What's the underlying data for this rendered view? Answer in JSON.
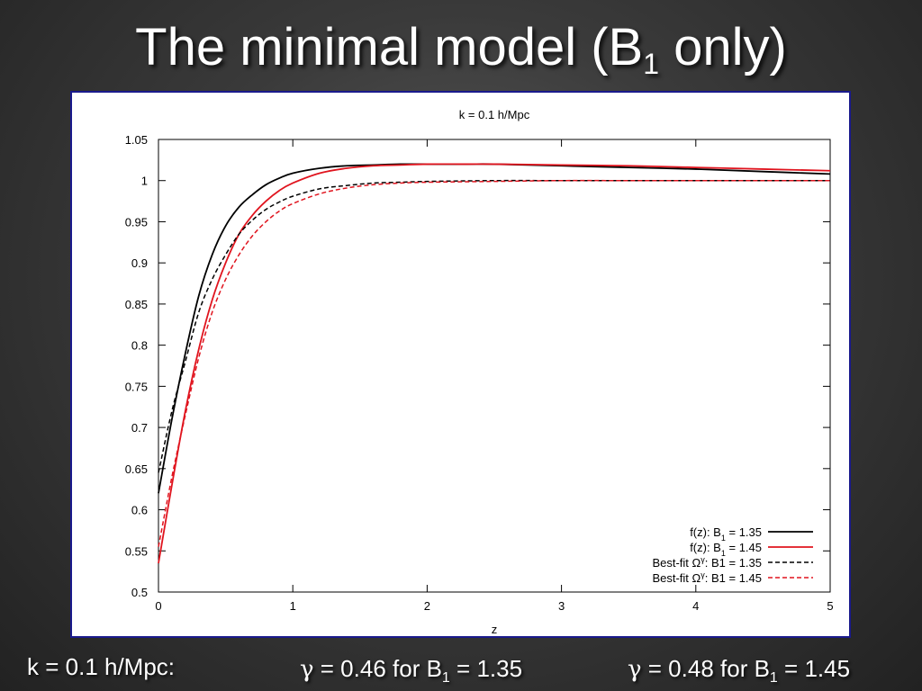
{
  "slide": {
    "title_main": "The minimal model (B",
    "title_sub": "1",
    "title_end": " only)"
  },
  "footer": {
    "left": "k = 0.1 h/Mpc:",
    "mid_greek": "γ",
    "mid_text": " = 0.46 for B",
    "mid_sub": "1",
    "mid_end": " = 1.35",
    "right_greek": "γ",
    "right_text": " = 0.48 for B",
    "right_sub": "1",
    "right_end": " = 1.45"
  },
  "chart_data": {
    "type": "line",
    "title": "k = 0.1 h/Mpc",
    "xlabel": "z",
    "ylabel": "",
    "xlim": [
      0,
      5
    ],
    "ylim": [
      0.5,
      1.05
    ],
    "xticks": [
      "0",
      "1",
      "2",
      "3",
      "4",
      "5"
    ],
    "yticks": [
      "0.5",
      "0.55",
      "0.6",
      "0.65",
      "0.7",
      "0.75",
      "0.8",
      "0.85",
      "0.9",
      "0.95",
      "1",
      "1.05"
    ],
    "legend_position": "bottom-right",
    "series": [
      {
        "name": "f(z): B1 = 1.35",
        "label_pre": "f(z): B",
        "label_sub": "1",
        "label_sup": "",
        "label_post": " = 1.35",
        "color": "#000000",
        "dash": "solid",
        "x": [
          0,
          0.1,
          0.2,
          0.3,
          0.4,
          0.5,
          0.6,
          0.7,
          0.8,
          0.9,
          1.0,
          1.2,
          1.4,
          1.6,
          1.8,
          2.0,
          2.3,
          2.5,
          3.0,
          3.5,
          4.0,
          4.5,
          5.0
        ],
        "y": [
          0.62,
          0.71,
          0.79,
          0.86,
          0.91,
          0.945,
          0.968,
          0.983,
          0.995,
          1.003,
          1.009,
          1.015,
          1.018,
          1.019,
          1.02,
          1.02,
          1.02,
          1.02,
          1.018,
          1.016,
          1.014,
          1.011,
          1.008
        ]
      },
      {
        "name": "f(z): B1 = 1.45",
        "label_pre": "f(z): B",
        "label_sub": "1",
        "label_sup": "",
        "label_post": " = 1.45",
        "color": "#e0141e",
        "dash": "solid",
        "x": [
          0,
          0.1,
          0.2,
          0.3,
          0.4,
          0.5,
          0.6,
          0.7,
          0.8,
          0.9,
          1.0,
          1.2,
          1.4,
          1.6,
          1.8,
          2.0,
          2.3,
          2.5,
          3.0,
          3.5,
          4.0,
          4.5,
          5.0
        ],
        "y": [
          0.535,
          0.63,
          0.72,
          0.795,
          0.855,
          0.9,
          0.935,
          0.958,
          0.975,
          0.988,
          0.997,
          1.009,
          1.015,
          1.018,
          1.019,
          1.02,
          1.02,
          1.02,
          1.019,
          1.018,
          1.016,
          1.014,
          1.012
        ]
      },
      {
        "name": "Best-fit Ωγ: B1 = 1.35",
        "label_pre": "Best-fit Ω",
        "label_sub": "",
        "label_sup": "γ",
        "label_post": ": B1 = 1.35",
        "color": "#000000",
        "dash": "dashed",
        "x": [
          0,
          0.1,
          0.2,
          0.3,
          0.4,
          0.5,
          0.6,
          0.7,
          0.8,
          0.9,
          1.0,
          1.2,
          1.4,
          1.6,
          1.8,
          2.0,
          2.5,
          3.0,
          3.5,
          4.0,
          4.5,
          5.0
        ],
        "y": [
          0.645,
          0.72,
          0.78,
          0.84,
          0.88,
          0.91,
          0.935,
          0.952,
          0.965,
          0.974,
          0.981,
          0.99,
          0.994,
          0.997,
          0.998,
          0.999,
          1.0,
          1.0,
          1.0,
          1.0,
          1.0,
          1.0
        ]
      },
      {
        "name": "Best-fit Ωγ: B1 = 1.45",
        "label_pre": "Best-fit Ω",
        "label_sub": "",
        "label_sup": "γ",
        "label_post": ": B1 = 1.45",
        "color": "#e0141e",
        "dash": "dashed",
        "x": [
          0,
          0.1,
          0.2,
          0.3,
          0.4,
          0.5,
          0.6,
          0.7,
          0.8,
          0.9,
          1.0,
          1.2,
          1.4,
          1.6,
          1.8,
          2.0,
          2.5,
          3.0,
          3.5,
          4.0,
          4.5,
          5.0
        ],
        "y": [
          0.555,
          0.64,
          0.715,
          0.785,
          0.84,
          0.88,
          0.91,
          0.933,
          0.95,
          0.963,
          0.972,
          0.984,
          0.991,
          0.995,
          0.997,
          0.998,
          0.999,
          1.0,
          1.0,
          1.0,
          1.0,
          1.0
        ]
      }
    ]
  }
}
